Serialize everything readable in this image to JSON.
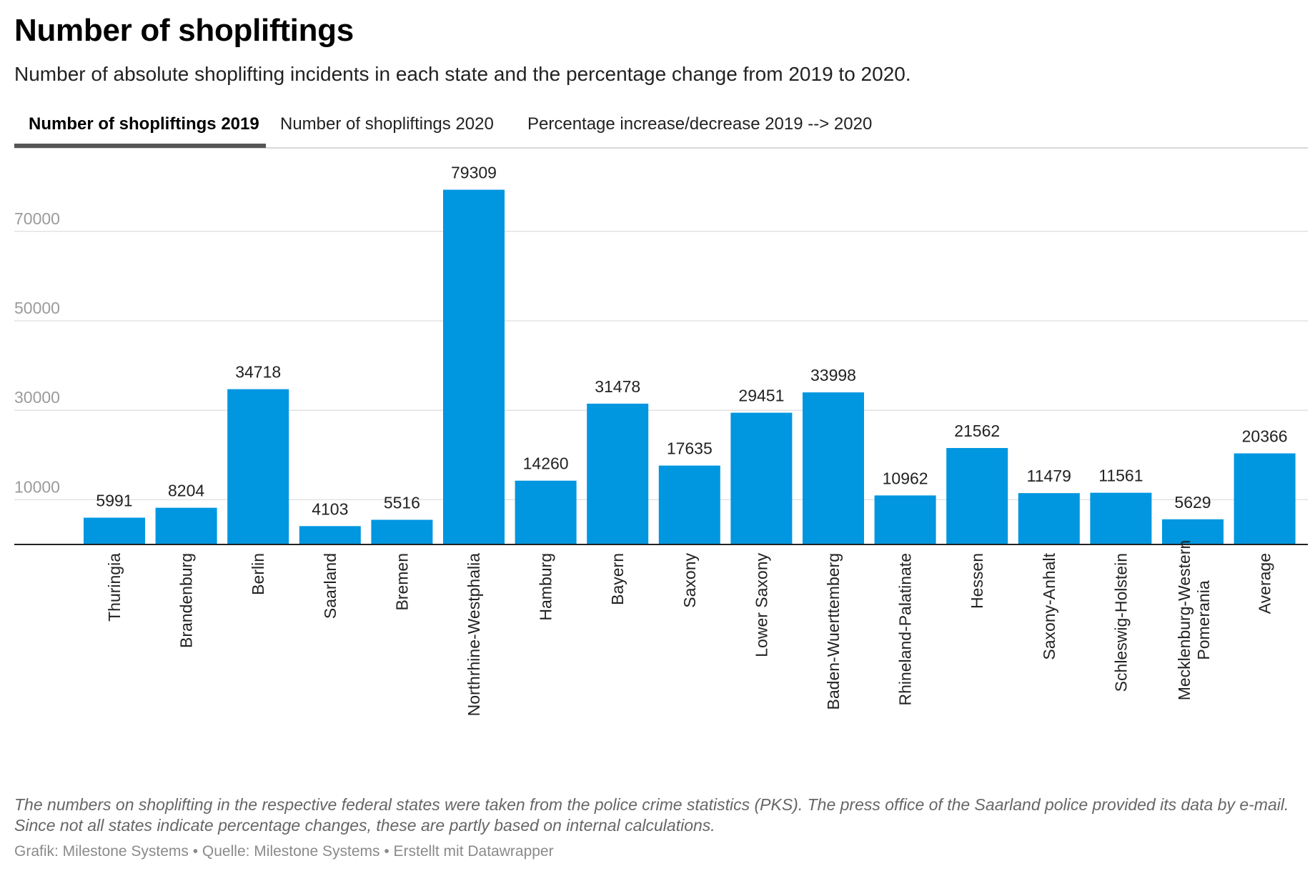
{
  "header": {
    "title": "Number of shopliftings",
    "subtitle": "Number of absolute shoplifting incidents in each state and the percentage change from 2019 to 2020."
  },
  "tabs": [
    {
      "label": "Number of shopliftings 2019",
      "active": true
    },
    {
      "label": "Number of shopliftings 2020",
      "active": false
    },
    {
      "label": "Percentage increase/decrease 2019 --> 2020",
      "active": false
    }
  ],
  "chart_data": {
    "type": "bar",
    "categories": [
      "Thuringia",
      "Brandenburg",
      "Berlin",
      "Saarland",
      "Bremen",
      "Northrhine-Westphalia",
      "Hamburg",
      "Bayern",
      "Saxony",
      "Lower Saxony",
      "Baden-Wuerttemberg",
      "Rhineland-Palatinate",
      "Hessen",
      "Saxony-Anhalt",
      "Schleswig-Holstein",
      "Mecklenburg-Western Pomerania",
      "Average"
    ],
    "values": [
      5991,
      8204,
      34718,
      4103,
      5516,
      79309,
      14260,
      31478,
      17635,
      29451,
      33998,
      10962,
      21562,
      11479,
      11561,
      5629,
      20366
    ],
    "yticks": [
      10000,
      30000,
      50000,
      70000
    ],
    "ylim": [
      0,
      82000
    ],
    "grid": true,
    "bar_color": "#0096e0"
  },
  "footer": {
    "notes": "The numbers on shoplifting in the respective federal states were taken from the police crime statistics (PKS). The press office of the Saarland police provided its data by e-mail. Since not all states indicate percentage changes, these are partly based on internal calculations.",
    "credit": "Grafik: Milestone Systems • Quelle: Milestone Systems • Erstellt mit Datawrapper"
  }
}
